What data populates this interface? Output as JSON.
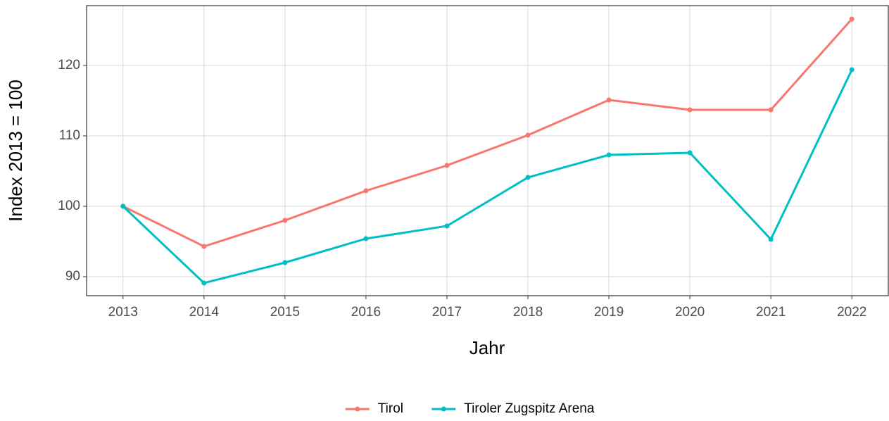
{
  "chart_data": {
    "type": "line",
    "x": [
      2013,
      2014,
      2015,
      2016,
      2017,
      2018,
      2019,
      2020,
      2021,
      2022
    ],
    "series": [
      {
        "name": "Tirol",
        "color": "#f8766d",
        "values": [
          100,
          94.3,
          98.0,
          102.2,
          105.8,
          110.1,
          115.1,
          113.7,
          113.7,
          126.6
        ]
      },
      {
        "name": "Tiroler Zugspitz Arena",
        "color": "#00bfc4",
        "values": [
          100,
          89.1,
          92.0,
          95.4,
          97.2,
          104.1,
          107.3,
          107.6,
          95.3,
          119.4
        ]
      }
    ],
    "xlabel": "Jahr",
    "ylabel": "Index  2013  = 100",
    "xlim": [
      2012.55,
      2022.45
    ],
    "xticks": [
      2013,
      2014,
      2015,
      2016,
      2017,
      2018,
      2019,
      2020,
      2021,
      2022
    ],
    "ylim": [
      87.3,
      128.5
    ],
    "yticks": [
      90,
      100,
      110,
      120
    ],
    "grid": true,
    "legend": "bottom"
  }
}
